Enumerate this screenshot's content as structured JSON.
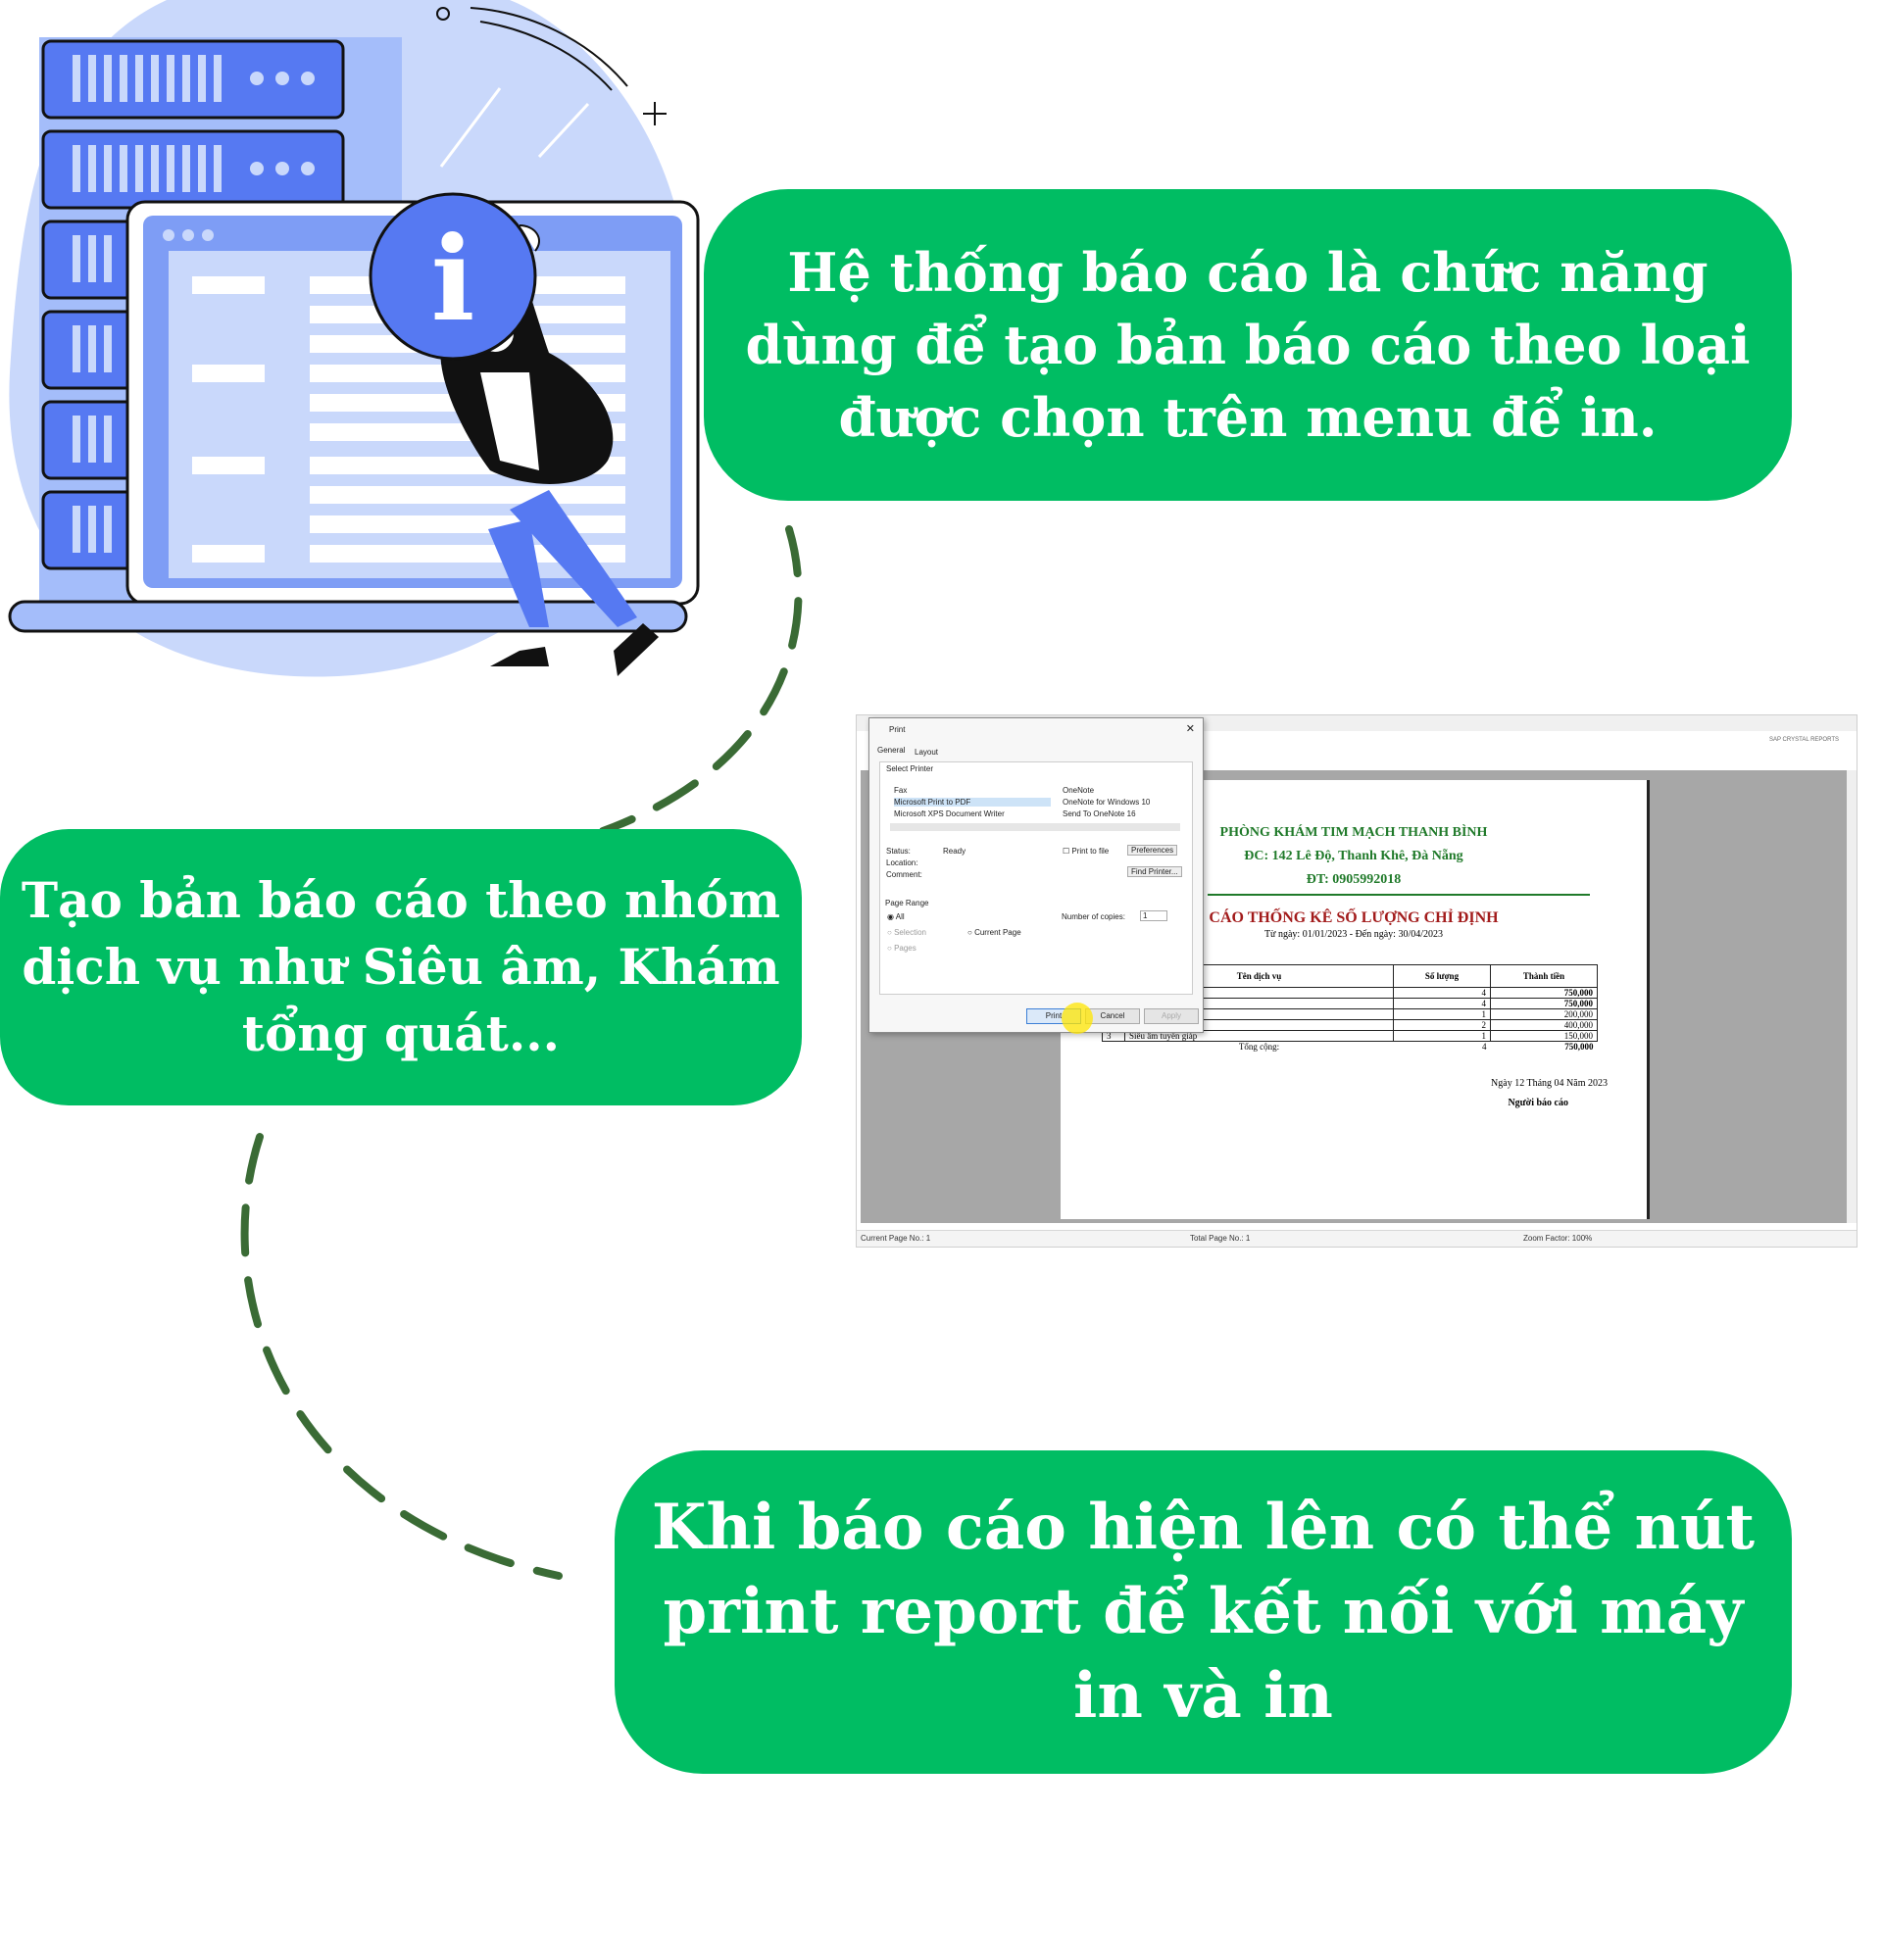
{
  "bubbles": {
    "top": [
      "Hệ thống báo cáo là chức năng",
      "dùng để tạo bản báo cáo theo loại",
      "được chọn trên menu để in."
    ],
    "middle": [
      "Tạo bản báo cáo theo nhóm",
      "dịch vụ như Siêu âm, Khám",
      "tổng quát..."
    ],
    "bottom": [
      "Khi báo cáo hiện lên có thể nút",
      "print report để kết nối với máy",
      "in và in"
    ]
  },
  "illustration": {
    "icon": "info-icon",
    "glyph": "i"
  },
  "screenshot": {
    "brand": "SAP CRYSTAL REPORTS",
    "status": {
      "page": "Current Page No.: 1",
      "total": "Total Page No.: 1",
      "zoom": "Zoom Factor: 100%"
    },
    "report": {
      "clinic": "PHÒNG KHÁM TIM MẠCH THANH BÌNH",
      "address": "ĐC: 142 Lê Độ, Thanh Khê, Đà Nẵng",
      "phone": "ĐT: 0905992018",
      "title": "CÁO THỐNG KÊ SỐ LƯỢNG CHỈ ĐỊNH",
      "range": "Từ ngày: 01/01/2023 - Đến ngày: 30/04/2023",
      "headers": [
        "Tên dịch vụ",
        "Số lượng",
        "Thành tiền"
      ],
      "rows": [
        [
          "",
          "",
          "4",
          "750,000"
        ],
        [
          "",
          "",
          "4",
          "750,000"
        ],
        [
          "",
          "",
          "1",
          "200,000"
        ],
        [
          "",
          "",
          "2",
          "400,000"
        ],
        [
          "3",
          "Siêu âm tuyến giáp",
          "1",
          "150,000"
        ]
      ],
      "total_label": "Tổng cộng:",
      "total_qty": "4",
      "total_amount": "750,000",
      "date": "Ngày 12 Tháng 04 Năm 2023",
      "signer": "Người báo cáo"
    },
    "dialog": {
      "title": "Print",
      "tabs": [
        "General",
        "Layout"
      ],
      "select_printer": "Select Printer",
      "printers_left": [
        "Fax",
        "Microsoft Print to PDF",
        "Microsoft XPS Document Writer"
      ],
      "printers_right": [
        "OneNote",
        "OneNote for Windows 10",
        "Send To OneNote 16"
      ],
      "status_label": "Status:",
      "status_value": "Ready",
      "location_label": "Location:",
      "comment_label": "Comment:",
      "print_to_file": "Print to file",
      "preferences": "Preferences",
      "find_printer": "Find Printer...",
      "page_range": "Page Range",
      "all": "All",
      "selection": "Selection",
      "current_page": "Current Page",
      "pages": "Pages",
      "copies_label": "Number of copies:",
      "copies_value": "1",
      "print": "Print",
      "cancel": "Cancel",
      "apply": "Apply"
    }
  },
  "colors": {
    "green": "#00bd63",
    "dash": "#3a6b35",
    "blue": "#5679f2",
    "light_blue": "#c9d8fb"
  }
}
